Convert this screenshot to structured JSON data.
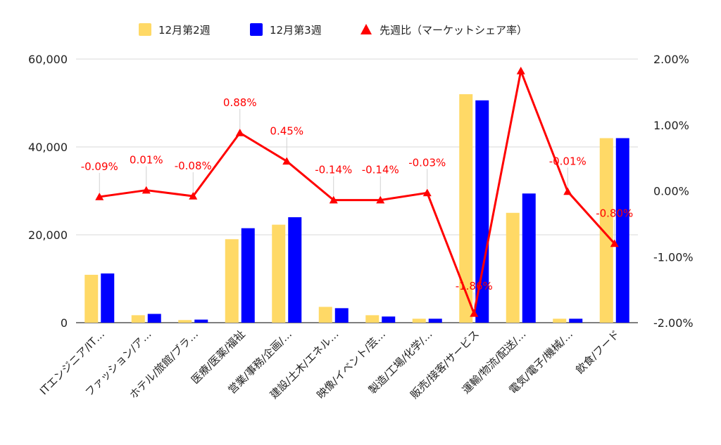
{
  "chart_data": {
    "type": "bar",
    "categories": [
      "ITエンジニア/IT…",
      "ファッション/ア…",
      "ホテル/旅館/ブラ…",
      "医療/医薬/福祉",
      "営業/事務/企画/…",
      "建設/土木/エネル…",
      "映像/イベント/芸…",
      "製造/工場/化学/…",
      "販売/接客/サービス",
      "運輸/物流/配送/…",
      "電気/電子/機械/…",
      "飲食/フード"
    ],
    "series": [
      {
        "name": "12月第2週",
        "type": "bar",
        "axis": "left",
        "color": "#ffd966",
        "values": [
          10900,
          1700,
          600,
          19000,
          22300,
          3600,
          1700,
          900,
          52000,
          25000,
          900,
          42000
        ]
      },
      {
        "name": "12月第3週",
        "type": "bar",
        "axis": "left",
        "color": "#0000ff",
        "values": [
          11200,
          2000,
          700,
          21500,
          24000,
          3300,
          1400,
          900,
          50600,
          29400,
          900,
          42000
        ]
      },
      {
        "name": "先週比（マーケットシェア率）",
        "type": "line",
        "axis": "right",
        "color": "#ff0000",
        "values": [
          -0.09,
          0.01,
          -0.08,
          0.88,
          0.45,
          -0.14,
          -0.14,
          -0.03,
          -1.86,
          1.82,
          -0.01,
          -0.8
        ],
        "labels": [
          "-0.09%",
          "0.01%",
          "-0.08%",
          "0.88%",
          "0.45%",
          "-0.14%",
          "-0.14%",
          "-0.03%",
          "-1.86%",
          "",
          "-0.01%",
          "-0.80%"
        ]
      }
    ],
    "y_left": {
      "min": 0,
      "max": 60000,
      "ticks": [
        "0",
        "20,000",
        "40,000",
        "60,000"
      ]
    },
    "y_right": {
      "min": -2.0,
      "max": 2.0,
      "ticks": [
        "-2.00%",
        "-1.00%",
        "0.00%",
        "1.00%",
        "2.00%"
      ]
    },
    "legend_position": "top",
    "grid": true
  }
}
